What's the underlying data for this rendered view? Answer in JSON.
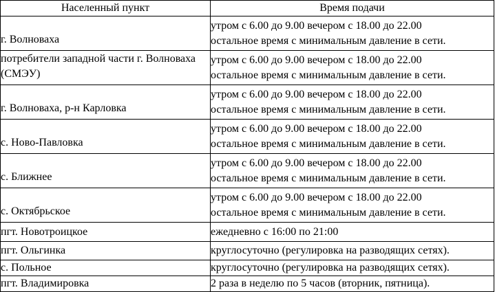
{
  "table": {
    "headers": {
      "settlement": "Населенный пункт",
      "time": "Время подачи"
    },
    "rows": [
      {
        "name": "г. Волноваха",
        "time_lines": [
          "утром с 6.00 до 9.00 вечером с 18.00 до 22.00",
          "остальное время с минимальным давление в сети."
        ]
      },
      {
        "name": "потребители западной части г. Волноваха (СМЭУ)",
        "time_lines": [
          "утром с 6.00 до 9.00 вечером с 18.00 до 22.00",
          "остальное время с минимальным давление в сети."
        ]
      },
      {
        "name": "г. Волноваха, р-н Карловка",
        "time_lines": [
          "утром с 6.00 до 9.00 вечером с 18.00 до 22.00",
          "остальное время с минимальным давление в сети."
        ]
      },
      {
        "name": "с. Ново-Павловка",
        "time_lines": [
          "утром с 6.00 до 9.00 вечером с 18.00 до 22.00",
          "остальное время с минимальным давление в сети."
        ]
      },
      {
        "name": "с. Ближнее",
        "time_lines": [
          "утром с 6.00 до 9.00 вечером с 18.00 до 22.00",
          "остальное время с минимальным давление в сети."
        ]
      },
      {
        "name": "с. Октябрьское",
        "time_lines": [
          "утром с 6.00 до 9.00 вечером с 18.00 до 22.00",
          "остальное время с минимальным давление в сети."
        ]
      },
      {
        "name": "пгт. Новотроицкое",
        "time_lines": [
          "ежедневно с 16:00 по 21:00"
        ]
      },
      {
        "name": "пгт. Ольгинка",
        "time_lines": [
          "круглосуточно (регулировка на разводящих сетях)."
        ]
      },
      {
        "name": "с. Польное",
        "time_lines": [
          "круглосуточно (регулировка на разводящих сетях)."
        ]
      },
      {
        "name": "пгт. Владимировка",
        "time_lines": [
          "2 раза в неделю по 5 часов (вторник, пятница)."
        ]
      }
    ]
  },
  "colors": {
    "border": "#000000",
    "text": "#000000",
    "background": "#ffffff"
  }
}
